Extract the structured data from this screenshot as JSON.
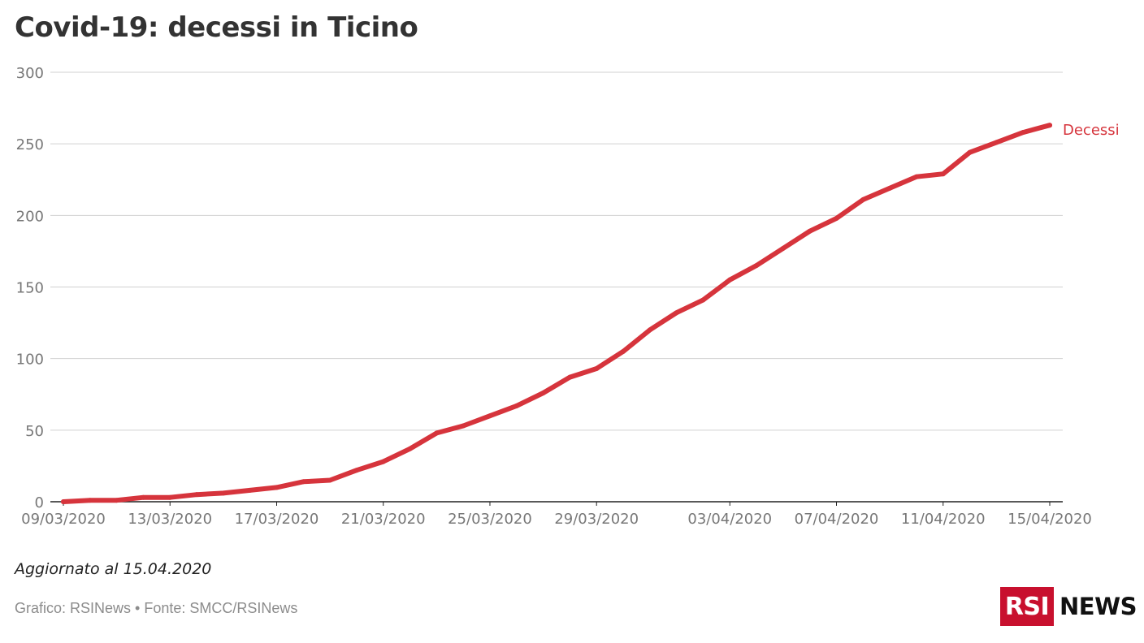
{
  "title": "Covid-19: decessi in Ticino",
  "footer": {
    "updated": "Aggiornato al 15.04.2020",
    "source": "Grafico: RSINews • Fonte: SMCC/RSINews"
  },
  "logo": {
    "box_text": "RSI",
    "word": "NEWS"
  },
  "colors": {
    "line": "#d6343c",
    "grid": "#d0d0d0",
    "axis": "#222222",
    "tick_text": "#777777",
    "logo_red": "#c8102e"
  },
  "chart_data": {
    "type": "line",
    "title": "Covid-19: decessi in Ticino",
    "xlabel": "",
    "ylabel": "",
    "ylim": [
      0,
      300
    ],
    "y_ticks": [
      0,
      50,
      100,
      150,
      200,
      250,
      300
    ],
    "x_tick_labels": [
      "09/03/2020",
      "13/03/2020",
      "17/03/2020",
      "21/03/2020",
      "25/03/2020",
      "29/03/2020",
      "03/04/2020",
      "07/04/2020",
      "11/04/2020",
      "15/04/2020"
    ],
    "grid": true,
    "legend": "direct label at line end",
    "series": [
      {
        "name": "Decessi",
        "x": [
          "09/03/2020",
          "10/03/2020",
          "11/03/2020",
          "12/03/2020",
          "13/03/2020",
          "14/03/2020",
          "15/03/2020",
          "16/03/2020",
          "17/03/2020",
          "18/03/2020",
          "19/03/2020",
          "20/03/2020",
          "21/03/2020",
          "22/03/2020",
          "23/03/2020",
          "24/03/2020",
          "25/03/2020",
          "26/03/2020",
          "27/03/2020",
          "28/03/2020",
          "29/03/2020",
          "30/03/2020",
          "31/03/2020",
          "01/04/2020",
          "02/04/2020",
          "03/04/2020",
          "04/04/2020",
          "05/04/2020",
          "06/04/2020",
          "07/04/2020",
          "08/04/2020",
          "09/04/2020",
          "10/04/2020",
          "11/04/2020",
          "12/04/2020",
          "13/04/2020",
          "14/04/2020",
          "15/04/2020"
        ],
        "values": [
          0,
          1,
          1,
          3,
          3,
          5,
          6,
          8,
          10,
          14,
          15,
          22,
          28,
          37,
          48,
          53,
          60,
          67,
          76,
          87,
          93,
          105,
          120,
          132,
          141,
          155,
          165,
          177,
          189,
          198,
          211,
          219,
          227,
          229,
          244,
          251,
          258,
          263
        ]
      }
    ]
  }
}
